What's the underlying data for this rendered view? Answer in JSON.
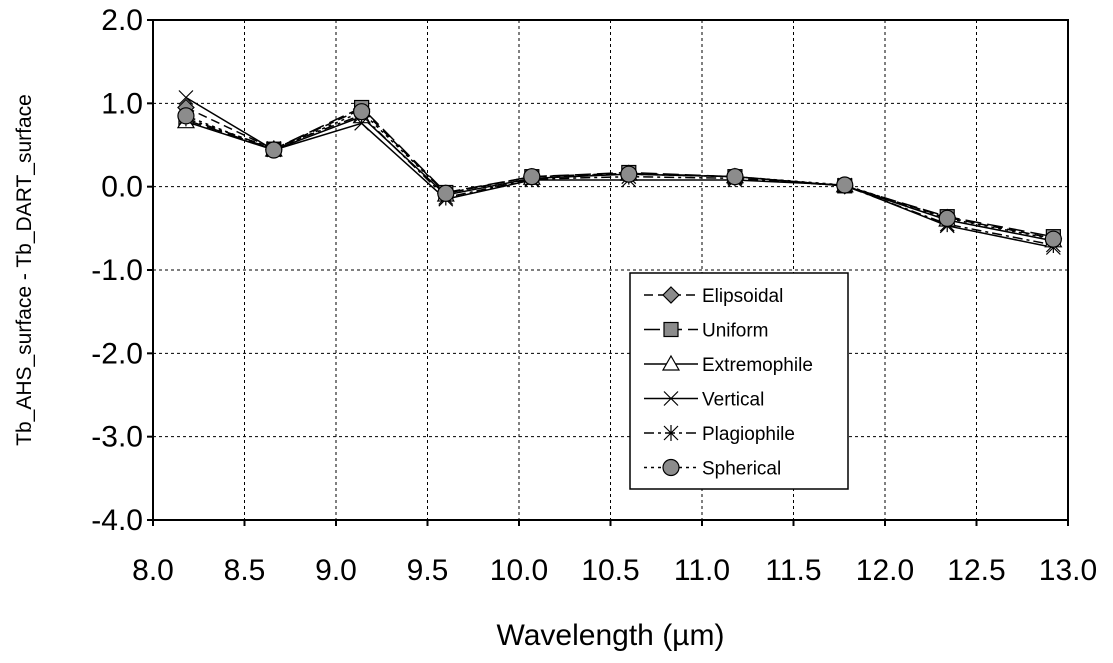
{
  "chart_data": {
    "type": "line",
    "xlabel": "Wavelength (µm)",
    "ylabel": "Tb_AHS_surface - Tb_DART_surface",
    "xlim": [
      8.0,
      13.0
    ],
    "ylim": [
      -4.0,
      2.0
    ],
    "x_ticks": [
      "8.0",
      "8.5",
      "9.0",
      "9.5",
      "10.0",
      "10.5",
      "11.0",
      "11.5",
      "12.0",
      "12.5",
      "13.0"
    ],
    "y_ticks": [
      "2.0",
      "1.0",
      "0.0",
      "-1.0",
      "-2.0",
      "-3.0",
      "-4.0"
    ],
    "grid": true,
    "legend_position": "lower-right",
    "x": [
      8.18,
      8.66,
      9.14,
      9.6,
      10.07,
      10.6,
      11.18,
      11.78,
      12.34,
      12.92
    ],
    "series": [
      {
        "name": "Elipsoidal",
        "marker": "diamond",
        "dash": "dash",
        "values": [
          0.95,
          0.45,
          0.93,
          -0.08,
          0.12,
          0.16,
          0.12,
          0.01,
          -0.37,
          -0.62
        ]
      },
      {
        "name": "Uniform",
        "marker": "square",
        "dash": "longdash",
        "values": [
          0.8,
          0.45,
          0.95,
          -0.07,
          0.12,
          0.17,
          0.12,
          0.01,
          -0.36,
          -0.6
        ]
      },
      {
        "name": "Extremophile",
        "marker": "triangle",
        "dash": "solid",
        "values": [
          0.78,
          0.44,
          0.84,
          -0.1,
          0.1,
          0.15,
          0.12,
          0.01,
          -0.4,
          -0.65
        ]
      },
      {
        "name": "Vertical",
        "marker": "x",
        "dash": "solid",
        "values": [
          1.07,
          0.44,
          0.76,
          -0.15,
          0.08,
          0.08,
          0.08,
          0.02,
          -0.47,
          -0.73
        ]
      },
      {
        "name": "Plagiophile",
        "marker": "star",
        "dash": "dashdot",
        "values": [
          0.82,
          0.46,
          0.86,
          -0.13,
          0.09,
          0.12,
          0.1,
          0.01,
          -0.45,
          -0.7
        ]
      },
      {
        "name": "Spherical",
        "marker": "circle",
        "dash": "dot",
        "values": [
          0.85,
          0.44,
          0.9,
          -0.08,
          0.12,
          0.15,
          0.12,
          0.02,
          -0.38,
          -0.63
        ]
      }
    ]
  }
}
